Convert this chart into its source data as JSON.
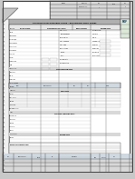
{
  "bg_color": "#c8c8c8",
  "doc_bg": "#ffffff",
  "border_color": "#444444",
  "line_color": "#999999",
  "dark_line": "#555555",
  "header_gray": "#b0b0b0",
  "cell_gray": "#d8d8d8",
  "text_dark": "#111111",
  "text_mid": "#444444",
  "text_light": "#888888",
  "blue_header": "#c5d5e8",
  "pdf_dark": "#1a3a5a",
  "pdf_text": "#e0e0e0",
  "fold_bg": "#b8b8b8",
  "table_header_bg": "#d0d8e0",
  "annotation_bg": "#dce8d8",
  "row_alt": "#f4f4f4"
}
